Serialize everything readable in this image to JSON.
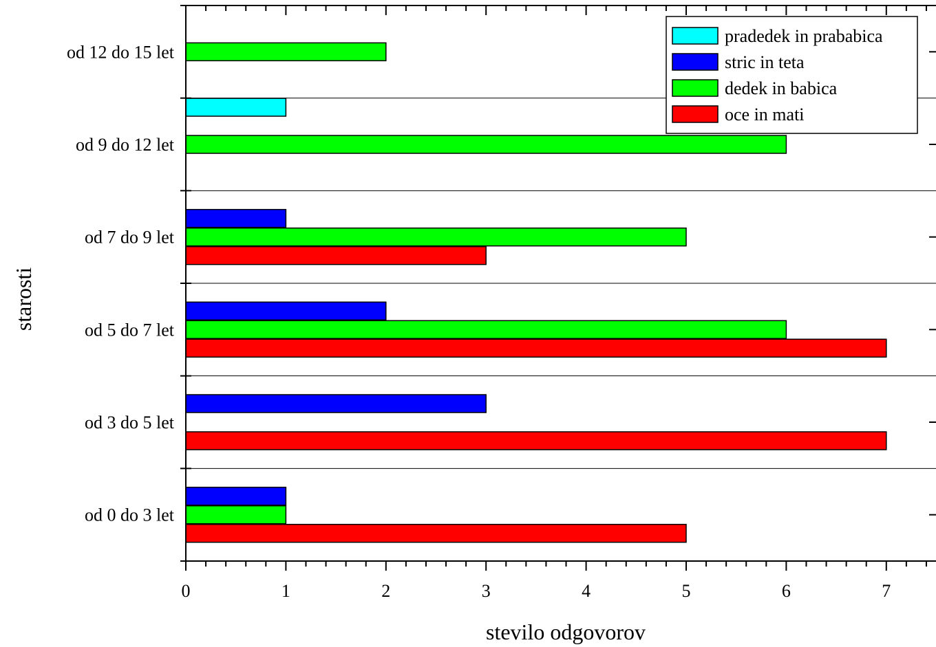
{
  "chart_data": {
    "type": "bar",
    "orientation": "horizontal",
    "categories": [
      "od 0 do 3 let",
      "od 3 do 5 let",
      "od 5 do 7 let",
      "od 7 do 9 let",
      "od 9 do 12 let",
      "od 12 do 15 let"
    ],
    "series": [
      {
        "name": "oce in mati",
        "color": "#ff0000",
        "values": [
          5,
          7,
          7,
          3,
          0,
          0
        ]
      },
      {
        "name": "dedek in babica",
        "color": "#00ff00",
        "values": [
          1,
          0,
          6,
          5,
          6,
          2
        ]
      },
      {
        "name": "stric in teta",
        "color": "#0000ff",
        "values": [
          1,
          3,
          2,
          1,
          0,
          0
        ]
      },
      {
        "name": "pradedek in prababica",
        "color": "#00ffff",
        "values": [
          0,
          0,
          0,
          0,
          1,
          0
        ]
      }
    ],
    "legend_order": [
      "pradedek in prababica",
      "stric in teta",
      "dedek in babica",
      "oce in mati"
    ],
    "xlabel": "stevilo odgovorov",
    "ylabel": "starosti",
    "xlim": [
      0,
      7.4
    ],
    "x_ticks": [
      "0",
      "1",
      "2",
      "3",
      "4",
      "5",
      "6",
      "7"
    ],
    "grid": "horizontal separators between categories",
    "legend_position": "top-right"
  }
}
